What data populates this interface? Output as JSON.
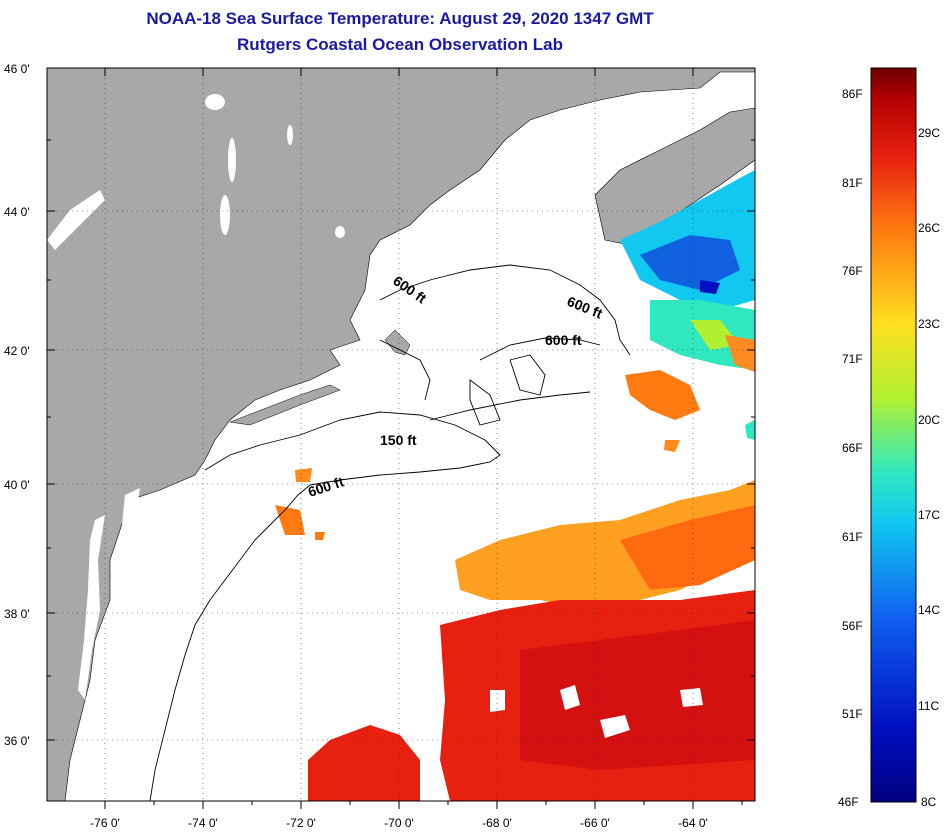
{
  "header": {
    "title": "NOAA-18 Sea Surface Temperature:  August 29, 2020 1347 GMT",
    "subtitle": "Rutgers Coastal Ocean Observation Lab"
  },
  "map": {
    "lat_ticks": [
      "46 0'",
      "44 0'",
      "42 0'",
      "40 0'",
      "38 0'",
      "36 0'"
    ],
    "lon_ticks": [
      "-76 0'",
      "-74 0'",
      "-72 0'",
      "-70 0'",
      "-68 0'",
      "-66 0'",
      "-64 0'"
    ],
    "contour_labels": [
      "600 ft",
      "600 ft",
      "600 ft",
      "150 ft",
      "600 ft"
    ]
  },
  "colorbar": {
    "fahrenheit": [
      "86F",
      "81F",
      "76F",
      "71F",
      "66F",
      "61F",
      "56F",
      "51F",
      "46F"
    ],
    "celsius": [
      "29C",
      "26C",
      "23C",
      "20C",
      "17C",
      "14C",
      "11C",
      "8C"
    ],
    "colors": [
      "#7a0000",
      "#d41010",
      "#f03010",
      "#ff7a10",
      "#ffd020",
      "#c8f020",
      "#30e0c0",
      "#10c8f0",
      "#1060e0",
      "#0010b0",
      "#000080"
    ]
  },
  "style": {
    "land_color": "#a8a8a8",
    "ocean_color": "#ffffff",
    "title_color": "#1a1aa6"
  }
}
